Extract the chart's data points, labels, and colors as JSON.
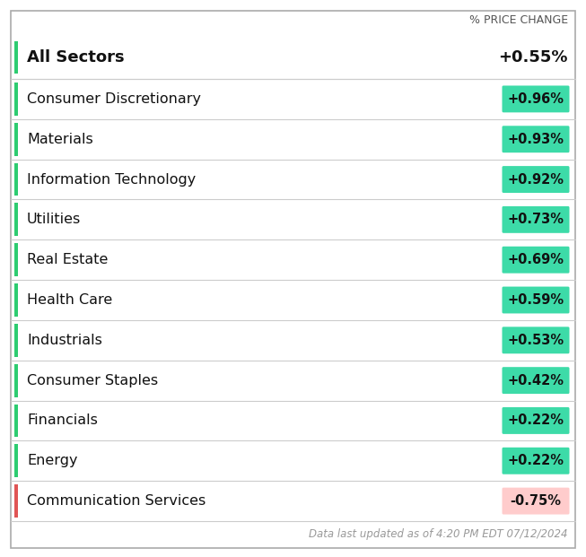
{
  "title_label": "% PRICE CHANGE",
  "header_sector": "All Sectors",
  "header_value": "+0.55%",
  "sectors": [
    "Consumer Discretionary",
    "Materials",
    "Information Technology",
    "Utilities",
    "Real Estate",
    "Health Care",
    "Industrials",
    "Consumer Staples",
    "Financials",
    "Energy",
    "Communication Services"
  ],
  "values": [
    "+0.96%",
    "+0.93%",
    "+0.92%",
    "+0.73%",
    "+0.69%",
    "+0.59%",
    "+0.53%",
    "+0.42%",
    "+0.22%",
    "+0.22%",
    "-0.75%"
  ],
  "is_positive": [
    true,
    true,
    true,
    true,
    true,
    true,
    true,
    true,
    true,
    true,
    false
  ],
  "positive_badge_bg": "#3ddba8",
  "negative_badge_bg": "#ffcccc",
  "positive_bar_color": "#2ecc71",
  "negative_bar_color": "#e05555",
  "header_bar_color": "#2ecc71",
  "bg_color": "#ffffff",
  "outer_border_color": "#aaaaaa",
  "row_line_color": "#cccccc",
  "footer_text": "Data last updated as of 4:20 PM EDT 07/12/2024",
  "footer_color": "#999999",
  "sector_fontsize": 11.5,
  "header_fontsize": 13,
  "value_fontsize": 10.5,
  "title_label_fontsize": 9
}
